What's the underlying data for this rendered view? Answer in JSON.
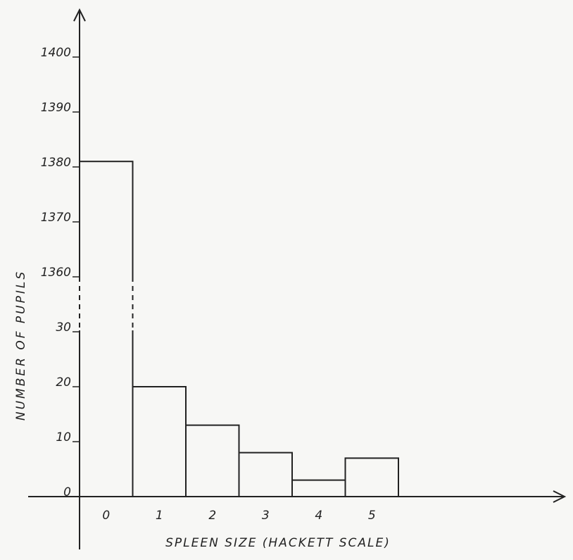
{
  "chart_data": {
    "type": "bar",
    "x_label": "SPLEEN SIZE (HACKETT SCALE)",
    "y_label": "NUMBER OF PUPILS",
    "categories": [
      "0",
      "1",
      "2",
      "3",
      "4",
      "5"
    ],
    "values": [
      1381,
      20,
      13,
      8,
      3,
      7
    ],
    "color": "#222222",
    "ylim": [
      0,
      1400
    ],
    "axis_break": [
      30,
      1360
    ],
    "yticks": [
      0,
      10,
      20,
      30,
      1360,
      1370,
      1380,
      1390,
      1400
    ],
    "grid": false
  }
}
